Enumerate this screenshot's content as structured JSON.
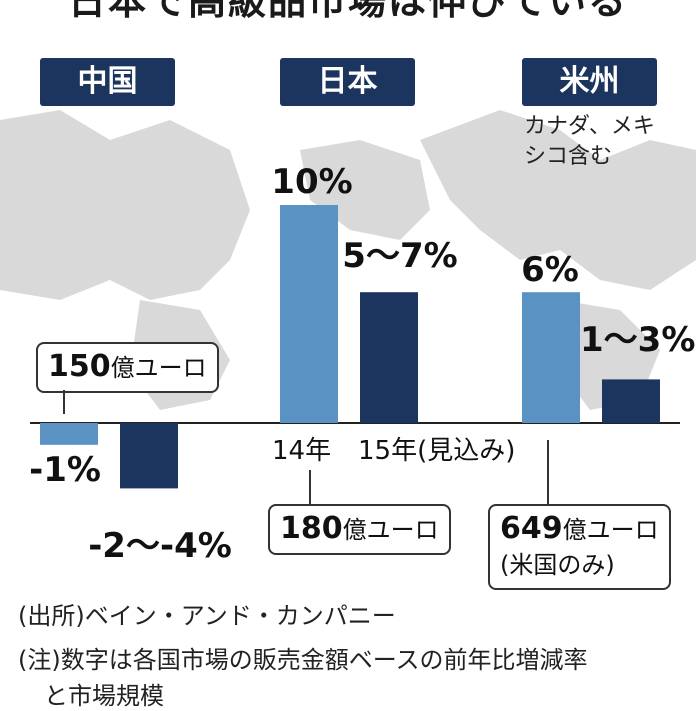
{
  "title": "日本で高級品市場は伸びている",
  "regions": [
    {
      "label": "中国"
    },
    {
      "label": "日本"
    },
    {
      "label": "米州",
      "note_lines": [
        "カナダ、メキ",
        "シコ含む"
      ]
    }
  ],
  "legend": {
    "y2014": "14年",
    "y2015": "15年(見込み)"
  },
  "callouts": {
    "china": {
      "value": "150",
      "unit": "億ユーロ"
    },
    "japan": {
      "value": "180",
      "unit": "億ユーロ"
    },
    "americas": {
      "value": "649",
      "unit": "億ユーロ",
      "sub": "(米国のみ)"
    }
  },
  "source_lines": [
    "(出所)ベイン・アンド・カンパニー",
    "(注)数字は各国市場の販売金額ベースの前年比増減率",
    "と市場規模"
  ],
  "colors": {
    "bar_2014": "#5a93c3",
    "bar_2015": "#1c355e",
    "tag_bg": "#1c355e",
    "map": "#d9d9d9"
  },
  "chart_data": {
    "type": "bar",
    "categories": [
      "中国",
      "日本",
      "米州"
    ],
    "series": [
      {
        "name": "14年",
        "values": [
          -1,
          10,
          6
        ],
        "labels": [
          "-1%",
          "10%",
          "6%"
        ]
      },
      {
        "name": "15年(見込み)",
        "values": [
          -3,
          6,
          2
        ],
        "labels": [
          "-2〜-4%",
          "5〜7%",
          "1〜3%"
        ]
      }
    ],
    "ylim": [
      -5,
      11
    ]
  }
}
